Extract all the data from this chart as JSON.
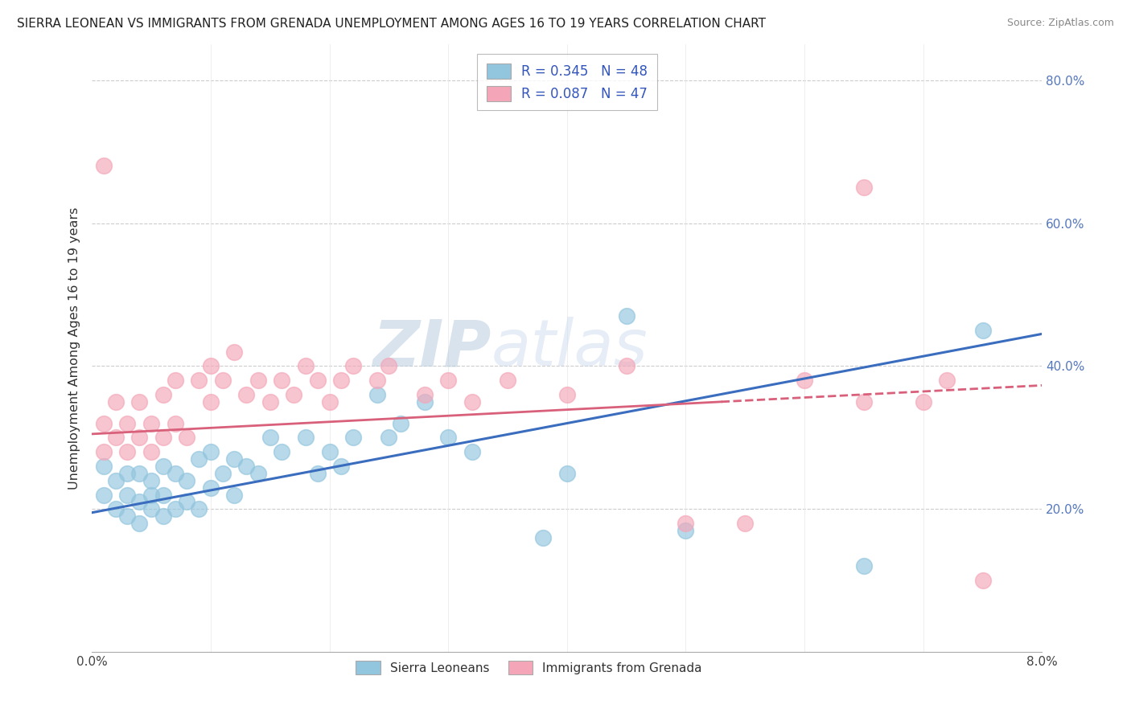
{
  "title": "SIERRA LEONEAN VS IMMIGRANTS FROM GRENADA UNEMPLOYMENT AMONG AGES 16 TO 19 YEARS CORRELATION CHART",
  "source": "Source: ZipAtlas.com",
  "ylabel": "Unemployment Among Ages 16 to 19 years",
  "xmin": 0.0,
  "xmax": 0.08,
  "ymin": 0.0,
  "ymax": 0.85,
  "legend1_label": "R = 0.345   N = 48",
  "legend2_label": "R = 0.087   N = 47",
  "legend_bottom_label1": "Sierra Leoneans",
  "legend_bottom_label2": "Immigrants from Grenada",
  "blue_color": "#92c5de",
  "pink_color": "#f4a6b8",
  "blue_line_color": "#3b6dbf",
  "pink_line_color": "#d9607a",
  "watermark_zip": "ZIP",
  "watermark_atlas": "atlas",
  "blue_scatter_x": [
    0.001,
    0.001,
    0.002,
    0.002,
    0.003,
    0.003,
    0.003,
    0.004,
    0.004,
    0.004,
    0.005,
    0.005,
    0.005,
    0.006,
    0.006,
    0.006,
    0.007,
    0.007,
    0.008,
    0.008,
    0.009,
    0.009,
    0.01,
    0.01,
    0.011,
    0.012,
    0.012,
    0.013,
    0.014,
    0.015,
    0.016,
    0.018,
    0.019,
    0.02,
    0.021,
    0.022,
    0.024,
    0.025,
    0.026,
    0.028,
    0.03,
    0.032,
    0.038,
    0.04,
    0.045,
    0.05,
    0.065,
    0.075
  ],
  "blue_scatter_y": [
    0.22,
    0.26,
    0.2,
    0.24,
    0.19,
    0.22,
    0.25,
    0.18,
    0.21,
    0.25,
    0.2,
    0.22,
    0.24,
    0.19,
    0.22,
    0.26,
    0.2,
    0.25,
    0.21,
    0.24,
    0.2,
    0.27,
    0.23,
    0.28,
    0.25,
    0.22,
    0.27,
    0.26,
    0.25,
    0.3,
    0.28,
    0.3,
    0.25,
    0.28,
    0.26,
    0.3,
    0.36,
    0.3,
    0.32,
    0.35,
    0.3,
    0.28,
    0.16,
    0.25,
    0.47,
    0.17,
    0.12,
    0.45
  ],
  "pink_scatter_x": [
    0.001,
    0.001,
    0.002,
    0.002,
    0.003,
    0.003,
    0.004,
    0.004,
    0.005,
    0.005,
    0.006,
    0.006,
    0.007,
    0.007,
    0.008,
    0.009,
    0.01,
    0.01,
    0.011,
    0.012,
    0.013,
    0.014,
    0.015,
    0.016,
    0.017,
    0.018,
    0.019,
    0.02,
    0.021,
    0.022,
    0.024,
    0.025,
    0.028,
    0.03,
    0.032,
    0.035,
    0.04,
    0.045,
    0.05,
    0.055,
    0.06,
    0.065,
    0.065,
    0.07,
    0.072,
    0.075,
    0.001
  ],
  "pink_scatter_y": [
    0.28,
    0.32,
    0.3,
    0.35,
    0.28,
    0.32,
    0.3,
    0.35,
    0.28,
    0.32,
    0.3,
    0.36,
    0.32,
    0.38,
    0.3,
    0.38,
    0.35,
    0.4,
    0.38,
    0.42,
    0.36,
    0.38,
    0.35,
    0.38,
    0.36,
    0.4,
    0.38,
    0.35,
    0.38,
    0.4,
    0.38,
    0.4,
    0.36,
    0.38,
    0.35,
    0.38,
    0.36,
    0.4,
    0.18,
    0.18,
    0.38,
    0.35,
    0.65,
    0.35,
    0.38,
    0.1,
    0.68
  ]
}
